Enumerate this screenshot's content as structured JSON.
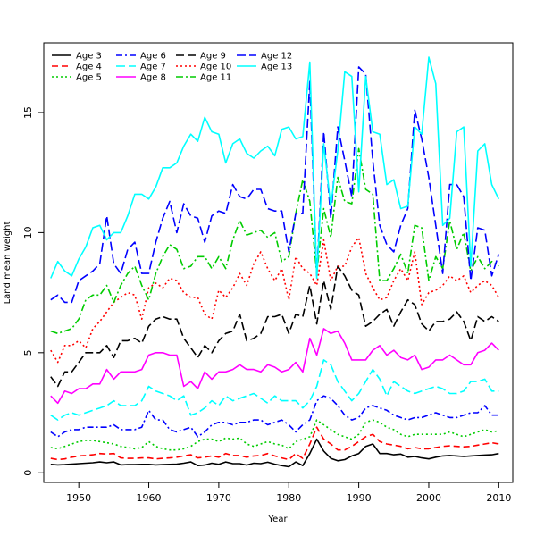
{
  "chart_data": {
    "type": "line",
    "xlabel": "Year",
    "ylabel": "Land mean weight",
    "xlim": [
      1945,
      2012
    ],
    "ylim": [
      -0.4,
      17.9
    ],
    "xticks": [
      1950,
      1960,
      1970,
      1980,
      1990,
      2000,
      2010
    ],
    "yticks": [
      0,
      5,
      10,
      15
    ],
    "grid": false,
    "legend_position": "top-left",
    "x": [
      1946,
      1947,
      1948,
      1949,
      1950,
      1951,
      1952,
      1953,
      1954,
      1955,
      1956,
      1957,
      1958,
      1959,
      1960,
      1961,
      1962,
      1963,
      1964,
      1965,
      1966,
      1967,
      1968,
      1969,
      1970,
      1971,
      1972,
      1973,
      1974,
      1975,
      1976,
      1977,
      1978,
      1979,
      1980,
      1981,
      1982,
      1983,
      1984,
      1985,
      1986,
      1987,
      1988,
      1989,
      1990,
      1991,
      1992,
      1993,
      1994,
      1995,
      1996,
      1997,
      1998,
      1999,
      2000,
      2001,
      2002,
      2003,
      2004,
      2005,
      2006,
      2007,
      2008,
      2009,
      2010
    ],
    "series": [
      {
        "name": "Age 3",
        "color": "#000000",
        "dash": "solid",
        "values": [
          0.35,
          0.33,
          0.34,
          0.36,
          0.38,
          0.4,
          0.42,
          0.45,
          0.42,
          0.45,
          0.33,
          0.34,
          0.34,
          0.35,
          0.35,
          0.33,
          0.34,
          0.35,
          0.36,
          0.4,
          0.45,
          0.3,
          0.32,
          0.4,
          0.35,
          0.45,
          0.38,
          0.38,
          0.32,
          0.4,
          0.38,
          0.44,
          0.36,
          0.3,
          0.25,
          0.45,
          0.3,
          0.8,
          1.4,
          0.9,
          0.6,
          0.5,
          0.55,
          0.7,
          0.8,
          1.1,
          1.2,
          0.8,
          0.8,
          0.75,
          0.78,
          0.65,
          0.68,
          0.62,
          0.58,
          0.65,
          0.7,
          0.72,
          0.7,
          0.68,
          0.7,
          0.72,
          0.74,
          0.75,
          0.8
        ]
      },
      {
        "name": "Age 4",
        "color": "#ff0000",
        "dash": "7,4",
        "values": [
          0.6,
          0.55,
          0.58,
          0.65,
          0.7,
          0.72,
          0.75,
          0.8,
          0.78,
          0.8,
          0.62,
          0.6,
          0.6,
          0.62,
          0.62,
          0.58,
          0.6,
          0.62,
          0.65,
          0.7,
          0.75,
          0.62,
          0.65,
          0.7,
          0.65,
          0.8,
          0.72,
          0.72,
          0.65,
          0.7,
          0.72,
          0.8,
          0.7,
          0.62,
          0.55,
          0.8,
          0.6,
          1.2,
          1.9,
          1.4,
          1.2,
          0.95,
          0.95,
          1.1,
          1.3,
          1.5,
          1.6,
          1.3,
          1.2,
          1.15,
          1.1,
          1.0,
          1.05,
          1.0,
          1.0,
          1.05,
          1.1,
          1.12,
          1.1,
          1.08,
          1.1,
          1.15,
          1.2,
          1.25,
          1.2
        ]
      },
      {
        "name": "Age 5",
        "color": "#00cc00",
        "dash": "2,3",
        "values": [
          1.05,
          1.0,
          1.1,
          1.2,
          1.3,
          1.35,
          1.35,
          1.3,
          1.25,
          1.2,
          1.1,
          1.05,
          1.0,
          1.05,
          1.3,
          1.1,
          1.0,
          0.95,
          0.95,
          1.0,
          1.1,
          1.3,
          1.4,
          1.4,
          1.3,
          1.45,
          1.4,
          1.45,
          1.2,
          1.1,
          1.2,
          1.3,
          1.2,
          1.15,
          1.0,
          1.3,
          1.4,
          1.5,
          2.2,
          2.0,
          1.8,
          1.6,
          1.5,
          1.4,
          1.6,
          2.1,
          2.2,
          2.1,
          1.9,
          1.8,
          1.6,
          1.5,
          1.6,
          1.6,
          1.6,
          1.6,
          1.6,
          1.7,
          1.6,
          1.5,
          1.6,
          1.7,
          1.8,
          1.7,
          1.75
        ]
      },
      {
        "name": "Age 6",
        "color": "#0000ff",
        "dash": "7,3,2,3",
        "values": [
          1.7,
          1.5,
          1.7,
          1.8,
          1.8,
          1.9,
          1.9,
          1.9,
          1.9,
          2.0,
          1.8,
          1.8,
          1.8,
          1.9,
          2.6,
          2.2,
          2.2,
          1.8,
          1.7,
          1.8,
          1.9,
          1.5,
          1.7,
          2.0,
          2.1,
          2.1,
          2.0,
          2.1,
          2.1,
          2.2,
          2.2,
          2.0,
          2.1,
          2.2,
          2.0,
          1.7,
          2.0,
          2.2,
          3.0,
          3.2,
          3.1,
          2.8,
          2.4,
          2.2,
          2.3,
          2.7,
          2.8,
          2.7,
          2.6,
          2.4,
          2.3,
          2.2,
          2.3,
          2.3,
          2.4,
          2.5,
          2.4,
          2.3,
          2.3,
          2.4,
          2.5,
          2.5,
          2.8,
          2.4,
          2.4
        ]
      },
      {
        "name": "Age 7",
        "color": "#00ffff",
        "dash": "10,4",
        "values": [
          2.4,
          2.2,
          2.4,
          2.5,
          2.4,
          2.5,
          2.6,
          2.7,
          2.8,
          3.0,
          2.8,
          2.8,
          2.8,
          3.0,
          3.6,
          3.4,
          3.3,
          3.2,
          3.0,
          3.2,
          2.4,
          2.5,
          2.7,
          3.0,
          2.8,
          3.2,
          3.0,
          3.1,
          3.2,
          3.3,
          3.1,
          2.9,
          3.2,
          3.0,
          3.0,
          3.0,
          2.7,
          3.0,
          3.6,
          4.7,
          4.5,
          3.8,
          3.4,
          3.0,
          3.3,
          3.8,
          4.3,
          3.9,
          3.2,
          3.8,
          3.6,
          3.4,
          3.3,
          3.4,
          3.5,
          3.6,
          3.5,
          3.3,
          3.3,
          3.4,
          3.8,
          3.8,
          3.9,
          3.4,
          3.4
        ]
      },
      {
        "name": "Age 8",
        "color": "#ff00ff",
        "dash": "solid",
        "values": [
          3.2,
          2.9,
          3.4,
          3.3,
          3.5,
          3.5,
          3.7,
          3.7,
          4.3,
          3.9,
          4.2,
          4.2,
          4.2,
          4.3,
          4.9,
          5.0,
          5.0,
          4.9,
          4.9,
          3.6,
          3.8,
          3.5,
          4.2,
          3.9,
          4.2,
          4.2,
          4.3,
          4.5,
          4.3,
          4.3,
          4.2,
          4.5,
          4.4,
          4.2,
          4.3,
          4.6,
          4.2,
          5.6,
          4.9,
          6.0,
          5.8,
          5.9,
          5.4,
          4.7,
          4.7,
          4.7,
          5.1,
          5.3,
          4.9,
          5.1,
          4.8,
          4.7,
          4.9,
          4.3,
          4.4,
          4.7,
          4.7,
          4.9,
          4.7,
          4.5,
          4.5,
          5.0,
          5.1,
          5.4,
          5.1
        ]
      },
      {
        "name": "Age 9",
        "color": "#000000",
        "dash": "9,4",
        "values": [
          4.0,
          3.6,
          4.2,
          4.2,
          4.6,
          5.0,
          5.0,
          5.0,
          5.3,
          4.8,
          5.5,
          5.5,
          5.6,
          5.4,
          6.1,
          6.4,
          6.5,
          6.4,
          6.4,
          5.6,
          5.2,
          4.8,
          5.3,
          5.0,
          5.5,
          5.8,
          5.9,
          6.6,
          5.5,
          5.6,
          5.8,
          6.5,
          6.5,
          6.6,
          5.8,
          6.6,
          6.5,
          7.8,
          6.2,
          8.0,
          6.8,
          8.6,
          8.2,
          7.6,
          7.4,
          6.1,
          6.3,
          6.6,
          6.8,
          6.1,
          6.7,
          7.2,
          7.0,
          6.2,
          5.9,
          6.3,
          6.3,
          6.4,
          6.7,
          6.3,
          5.5,
          6.5,
          6.3,
          6.5,
          6.3
        ]
      },
      {
        "name": "Age 10",
        "color": "#ff0000",
        "dash": "2,3",
        "values": [
          5.1,
          4.6,
          5.3,
          5.3,
          5.5,
          5.2,
          6.0,
          6.3,
          6.7,
          7.1,
          7.3,
          7.5,
          7.4,
          6.4,
          7.7,
          7.9,
          7.7,
          8.1,
          8.0,
          7.5,
          7.3,
          7.3,
          6.6,
          6.4,
          7.6,
          7.3,
          7.7,
          8.3,
          7.8,
          8.7,
          9.2,
          8.5,
          8.0,
          8.5,
          7.2,
          9.0,
          8.5,
          8.3,
          7.8,
          9.7,
          8.0,
          8.6,
          8.6,
          9.4,
          9.8,
          8.3,
          7.7,
          7.2,
          7.3,
          8.0,
          8.5,
          8.0,
          9.2,
          7.0,
          7.5,
          7.6,
          7.8,
          8.2,
          8.0,
          8.2,
          7.5,
          7.8,
          8.0,
          7.8,
          7.3
        ]
      },
      {
        "name": "Age 11",
        "color": "#00cc00",
        "dash": "8,3,2,3",
        "values": [
          5.9,
          5.8,
          5.9,
          6.0,
          6.4,
          7.2,
          7.4,
          7.4,
          7.8,
          7.1,
          7.8,
          8.3,
          8.6,
          7.8,
          7.2,
          8.3,
          9.0,
          9.5,
          9.3,
          8.5,
          8.6,
          9.0,
          9.0,
          8.5,
          9.0,
          8.5,
          9.7,
          10.5,
          9.9,
          10.0,
          10.1,
          9.8,
          10.0,
          8.8,
          9.0,
          10.8,
          12.2,
          11.3,
          8.3,
          11.0,
          9.8,
          12.3,
          11.3,
          11.2,
          13.5,
          11.8,
          11.6,
          8.0,
          8.0,
          8.5,
          9.1,
          8.3,
          10.3,
          10.2,
          8.0,
          9.0,
          8.5,
          10.5,
          9.3,
          10.0,
          8.4,
          9.0,
          8.5,
          8.8,
          8.6
        ]
      },
      {
        "name": "Age 12",
        "color": "#0000ff",
        "dash": "10,4",
        "values": [
          7.2,
          7.4,
          7.1,
          7.1,
          8.0,
          8.2,
          8.4,
          8.7,
          10.7,
          8.7,
          8.3,
          9.3,
          9.6,
          8.3,
          8.3,
          9.6,
          10.6,
          11.3,
          10.0,
          11.2,
          10.7,
          10.6,
          9.6,
          10.7,
          10.9,
          10.8,
          12.0,
          11.5,
          11.4,
          11.8,
          11.8,
          11.0,
          10.9,
          10.9,
          9.2,
          10.8,
          10.8,
          16.3,
          8.2,
          14.2,
          10.6,
          14.4,
          13.0,
          11.5,
          16.9,
          16.6,
          13.0,
          10.3,
          9.5,
          9.2,
          10.3,
          11.0,
          15.1,
          13.9,
          12.3,
          10.3,
          8.3,
          12.0,
          12.0,
          11.5,
          8.0,
          10.2,
          10.1,
          8.2,
          9.1
        ]
      },
      {
        "name": "Age 13",
        "color": "#00ffff",
        "dash": "solid",
        "values": [
          8.1,
          8.8,
          8.4,
          8.2,
          8.9,
          9.4,
          10.2,
          10.3,
          9.7,
          10.0,
          10.0,
          10.7,
          11.6,
          11.6,
          11.4,
          11.9,
          12.7,
          12.7,
          12.9,
          13.6,
          14.1,
          13.8,
          14.8,
          14.2,
          14.1,
          12.9,
          13.7,
          13.9,
          13.3,
          13.1,
          13.4,
          13.6,
          13.2,
          14.3,
          14.4,
          13.9,
          14.0,
          17.1,
          8.1,
          13.7,
          11.1,
          13.4,
          16.7,
          16.5,
          11.7,
          16.5,
          14.2,
          14.1,
          12.0,
          12.2,
          11.0,
          11.1,
          14.4,
          14.1,
          17.3,
          16.2,
          10.3,
          10.6,
          14.2,
          14.4,
          8.6,
          13.4,
          13.7,
          12.0,
          11.4
        ]
      }
    ]
  }
}
